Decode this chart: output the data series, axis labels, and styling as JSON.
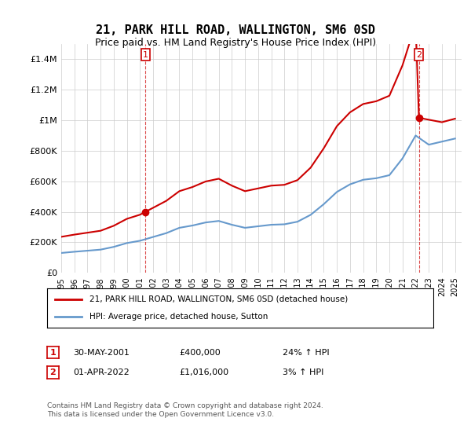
{
  "title": "21, PARK HILL ROAD, WALLINGTON, SM6 0SD",
  "subtitle": "Price paid vs. HM Land Registry's House Price Index (HPI)",
  "ylim": [
    0,
    1500000
  ],
  "yticks": [
    0,
    200000,
    400000,
    600000,
    800000,
    1000000,
    1200000,
    1400000
  ],
  "ytick_labels": [
    "£0",
    "£200K",
    "£400K",
    "£600K",
    "£800K",
    "£1M",
    "£1.2M",
    "£1.4M"
  ],
  "xlabel_years": [
    "1995",
    "1996",
    "1997",
    "1998",
    "1999",
    "2000",
    "2001",
    "2002",
    "2003",
    "2004",
    "2005",
    "2006",
    "2007",
    "2008",
    "2009",
    "2010",
    "2011",
    "2012",
    "2013",
    "2014",
    "2015",
    "2016",
    "2017",
    "2018",
    "2019",
    "2020",
    "2021",
    "2022",
    "2023",
    "2024",
    "2025"
  ],
  "hpi_years": [
    1995,
    1996,
    1997,
    1998,
    1999,
    2000,
    2001,
    2002,
    2003,
    2004,
    2005,
    2006,
    2007,
    2008,
    2009,
    2010,
    2011,
    2012,
    2013,
    2014,
    2015,
    2016,
    2017,
    2018,
    2019,
    2020,
    2021,
    2022,
    2023,
    2024,
    2025
  ],
  "hpi_values": [
    130000,
    138000,
    145000,
    152000,
    170000,
    195000,
    210000,
    235000,
    260000,
    295000,
    310000,
    330000,
    340000,
    315000,
    295000,
    305000,
    315000,
    318000,
    335000,
    380000,
    450000,
    530000,
    580000,
    610000,
    620000,
    640000,
    750000,
    900000,
    840000,
    860000,
    880000
  ],
  "price_paid_dates": [
    2001.42,
    2022.25
  ],
  "price_paid_values": [
    400000,
    1016000
  ],
  "sale1_label": "1",
  "sale2_label": "2",
  "sale1_date_str": "30-MAY-2001",
  "sale1_price_str": "£400,000",
  "sale1_hpi_str": "24% ↑ HPI",
  "sale2_date_str": "01-APR-2022",
  "sale2_price_str": "£1,016,000",
  "sale2_hpi_str": "3% ↑ HPI",
  "legend1_label": "21, PARK HILL ROAD, WALLINGTON, SM6 0SD (detached house)",
  "legend2_label": "HPI: Average price, detached house, Sutton",
  "footer": "Contains HM Land Registry data © Crown copyright and database right 2024.\nThis data is licensed under the Open Government Licence v3.0.",
  "price_color": "#cc0000",
  "hpi_color": "#6699cc",
  "bg_color": "#ffffff",
  "grid_color": "#cccccc"
}
